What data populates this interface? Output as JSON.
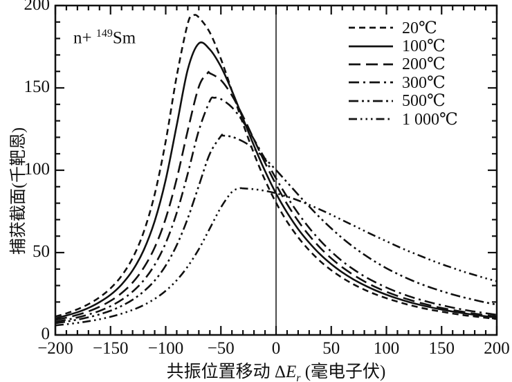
{
  "colors": {
    "ink": "#111111",
    "background": "#ffffff"
  },
  "chart_data": {
    "type": "line",
    "title": "",
    "annotation": {
      "prefix": "n+ ",
      "superscript": "149",
      "nuclide": "Sm"
    },
    "xlabel_prefix": "共振位置移动 Δ",
    "xlabel_symbol": "E",
    "xlabel_symbol_sub": "r",
    "xlabel_suffix": " (毫电子伏)",
    "ylabel": "捕获截面(千靶恩)",
    "xlim": [
      -200,
      200
    ],
    "ylim": [
      0,
      200
    ],
    "x_major_ticks": [
      -200,
      -150,
      -100,
      -50,
      0,
      50,
      100,
      150,
      200
    ],
    "x_major_tick_labels": [
      "−200",
      "−150",
      "−100",
      "−50",
      "0",
      "50",
      "100",
      "150",
      "200"
    ],
    "x_minor_step": 10,
    "y_major_ticks": [
      0,
      50,
      100,
      150,
      200
    ],
    "y_major_tick_labels": [
      "0",
      "50",
      "100",
      "150",
      "200"
    ],
    "y_minor_step": 10,
    "grid": false,
    "zero_reference_line_x": 0,
    "legend_position": "top-right",
    "series": [
      {
        "id": "20c",
        "label": "20℃",
        "line_style": "dashed",
        "dash": "9 6",
        "points": [
          [
            -200,
            11.2
          ],
          [
            -190,
            13.1
          ],
          [
            -180,
            15.6
          ],
          [
            -170,
            18.7
          ],
          [
            -160,
            22.8
          ],
          [
            -150,
            28.3
          ],
          [
            -140,
            35.9
          ],
          [
            -130,
            46.7
          ],
          [
            -120,
            62.4
          ],
          [
            -110,
            85.4
          ],
          [
            -100,
            117.6
          ],
          [
            -90,
            157.2
          ],
          [
            -80,
            189.1
          ],
          [
            -75,
            194
          ],
          [
            -70,
            192.8
          ],
          [
            -60,
            183.6
          ],
          [
            -50,
            167.6
          ],
          [
            -40,
            148.2
          ],
          [
            -30,
            128.4
          ],
          [
            -20,
            110.1
          ],
          [
            -10,
            94
          ],
          [
            0,
            80.3
          ],
          [
            10,
            68.8
          ],
          [
            20,
            59.3
          ],
          [
            30,
            51.4
          ],
          [
            40,
            44.8
          ],
          [
            50,
            39.3
          ],
          [
            60,
            34.7
          ],
          [
            70,
            30.8
          ],
          [
            80,
            27.5
          ],
          [
            90,
            24.7
          ],
          [
            100,
            22.3
          ],
          [
            110,
            20.2
          ],
          [
            120,
            18.3
          ],
          [
            130,
            16.7
          ],
          [
            140,
            15.3
          ],
          [
            150,
            14.1
          ],
          [
            160,
            13
          ],
          [
            170,
            12
          ],
          [
            180,
            11.2
          ],
          [
            190,
            10.4
          ],
          [
            200,
            9.7
          ]
        ]
      },
      {
        "id": "100c",
        "label": "100℃",
        "line_style": "solid",
        "dash": "",
        "points": [
          [
            -200,
            10.1
          ],
          [
            -190,
            11.8
          ],
          [
            -180,
            13.8
          ],
          [
            -170,
            16.4
          ],
          [
            -160,
            19.9
          ],
          [
            -150,
            24.4
          ],
          [
            -140,
            30.6
          ],
          [
            -130,
            39.2
          ],
          [
            -120,
            51.4
          ],
          [
            -110,
            69.1
          ],
          [
            -100,
            94.2
          ],
          [
            -90,
            127.3
          ],
          [
            -80,
            161.2
          ],
          [
            -70,
            177
          ],
          [
            -60,
            173.3
          ],
          [
            -50,
            162.9
          ],
          [
            -40,
            148.2
          ],
          [
            -30,
            131.5
          ],
          [
            -20,
            114.9
          ],
          [
            -10,
            99.5
          ],
          [
            0,
            85.9
          ],
          [
            10,
            74.3
          ],
          [
            20,
            64.3
          ],
          [
            30,
            56
          ],
          [
            40,
            48.9
          ],
          [
            50,
            43
          ],
          [
            60,
            38
          ],
          [
            70,
            33.8
          ],
          [
            80,
            30.2
          ],
          [
            90,
            27.1
          ],
          [
            100,
            24.4
          ],
          [
            110,
            22.1
          ],
          [
            120,
            20.1
          ],
          [
            130,
            18.3
          ],
          [
            140,
            16.8
          ],
          [
            150,
            15.4
          ],
          [
            160,
            14.2
          ],
          [
            170,
            13.2
          ],
          [
            180,
            12.2
          ],
          [
            190,
            11.3
          ],
          [
            200,
            10.6
          ]
        ]
      },
      {
        "id": "200c",
        "label": "200℃",
        "line_style": "long-dash",
        "dash": "17 8",
        "points": [
          [
            -200,
            9.1
          ],
          [
            -190,
            10.5
          ],
          [
            -180,
            12.2
          ],
          [
            -170,
            14.3
          ],
          [
            -160,
            17.1
          ],
          [
            -150,
            20.7
          ],
          [
            -140,
            25.4
          ],
          [
            -130,
            31.8
          ],
          [
            -120,
            40.7
          ],
          [
            -110,
            53.1
          ],
          [
            -100,
            70.7
          ],
          [
            -90,
            94.8
          ],
          [
            -80,
            124.2
          ],
          [
            -70,
            150.7
          ],
          [
            -62,
            159
          ],
          [
            -60,
            158.9
          ],
          [
            -50,
            154.7
          ],
          [
            -40,
            145.4
          ],
          [
            -30,
            132.8
          ],
          [
            -20,
            118.6
          ],
          [
            -10,
            104.5
          ],
          [
            0,
            91.3
          ],
          [
            10,
            79.5
          ],
          [
            20,
            69.2
          ],
          [
            30,
            60.4
          ],
          [
            40,
            52.9
          ],
          [
            50,
            46.5
          ],
          [
            60,
            41.1
          ],
          [
            70,
            36.5
          ],
          [
            80,
            32.5
          ],
          [
            90,
            29.1
          ],
          [
            100,
            26.2
          ],
          [
            110,
            23.7
          ],
          [
            120,
            21.5
          ],
          [
            130,
            19.6
          ],
          [
            140,
            17.9
          ],
          [
            150,
            16.4
          ],
          [
            160,
            15.1
          ],
          [
            170,
            14
          ],
          [
            180,
            12.9
          ],
          [
            190,
            12
          ],
          [
            200,
            11.2
          ]
        ]
      },
      {
        "id": "300c",
        "label": "300℃",
        "line_style": "dash-dot",
        "dash": "15 6 3 6",
        "points": [
          [
            -200,
            8
          ],
          [
            -190,
            9.2
          ],
          [
            -180,
            10.6
          ],
          [
            -170,
            12.4
          ],
          [
            -160,
            14.6
          ],
          [
            -150,
            17.5
          ],
          [
            -140,
            21.3
          ],
          [
            -130,
            26.3
          ],
          [
            -120,
            33.1
          ],
          [
            -110,
            42.6
          ],
          [
            -100,
            55.8
          ],
          [
            -90,
            74.1
          ],
          [
            -80,
            98
          ],
          [
            -70,
            124.1
          ],
          [
            -60,
            142.1
          ],
          [
            -56,
            144
          ],
          [
            -50,
            143.2
          ],
          [
            -40,
            138.2
          ],
          [
            -30,
            129.6
          ],
          [
            -20,
            118.7
          ],
          [
            -10,
            106.8
          ],
          [
            0,
            95
          ],
          [
            10,
            83.9
          ],
          [
            20,
            73.9
          ],
          [
            30,
            65
          ],
          [
            40,
            57.3
          ],
          [
            50,
            50.6
          ],
          [
            60,
            44.8
          ],
          [
            70,
            39.9
          ],
          [
            80,
            35.6
          ],
          [
            90,
            32
          ],
          [
            100,
            28.8
          ],
          [
            110,
            26
          ],
          [
            120,
            23.6
          ],
          [
            130,
            21.5
          ],
          [
            140,
            19.7
          ],
          [
            150,
            18.1
          ],
          [
            160,
            16.6
          ],
          [
            170,
            15.3
          ],
          [
            180,
            14.2
          ],
          [
            190,
            13.2
          ],
          [
            200,
            12.2
          ]
        ]
      },
      {
        "id": "500c",
        "label": "500℃",
        "line_style": "dash-dot-dot",
        "dash": "14 5 3 5 3 5",
        "points": [
          [
            -200,
            7.1
          ],
          [
            -190,
            8.1
          ],
          [
            -180,
            9.3
          ],
          [
            -170,
            10.7
          ],
          [
            -160,
            12.5
          ],
          [
            -150,
            14.7
          ],
          [
            -140,
            17.6
          ],
          [
            -130,
            21.4
          ],
          [
            -120,
            26.4
          ],
          [
            -110,
            33
          ],
          [
            -100,
            42.1
          ],
          [
            -90,
            54.5
          ],
          [
            -80,
            70.8
          ],
          [
            -70,
            90.6
          ],
          [
            -60,
            110
          ],
          [
            -50,
            120.7
          ],
          [
            -48,
            121
          ],
          [
            -40,
            120.3
          ],
          [
            -30,
            117.5
          ],
          [
            -20,
            113
          ],
          [
            -10,
            107
          ],
          [
            0,
            100.1
          ],
          [
            10,
            92.7
          ],
          [
            20,
            85.2
          ],
          [
            30,
            78
          ],
          [
            40,
            71.1
          ],
          [
            50,
            64.7
          ],
          [
            60,
            58.8
          ],
          [
            70,
            53.5
          ],
          [
            80,
            48.7
          ],
          [
            90,
            44.4
          ],
          [
            100,
            40.5
          ],
          [
            110,
            37.1
          ],
          [
            120,
            34
          ],
          [
            130,
            31.2
          ],
          [
            140,
            28.8
          ],
          [
            150,
            26.6
          ],
          [
            160,
            24.6
          ],
          [
            170,
            22.8
          ],
          [
            180,
            21.2
          ],
          [
            190,
            19.7
          ],
          [
            200,
            18.4
          ]
        ]
      },
      {
        "id": "1000c",
        "label": "1 000℃",
        "line_style": "dash-dot-dot-dot",
        "dash": "12 5 2.5 5 2.5 5 2.5 5",
        "points": [
          [
            -200,
            5.8
          ],
          [
            -190,
            6.5
          ],
          [
            -180,
            7.3
          ],
          [
            -170,
            8.3
          ],
          [
            -160,
            9.5
          ],
          [
            -150,
            11
          ],
          [
            -140,
            12.9
          ],
          [
            -130,
            15.2
          ],
          [
            -120,
            18.1
          ],
          [
            -110,
            21.9
          ],
          [
            -100,
            26.8
          ],
          [
            -90,
            33.2
          ],
          [
            -80,
            41.6
          ],
          [
            -70,
            52.1
          ],
          [
            -60,
            64.7
          ],
          [
            -50,
            77.4
          ],
          [
            -40,
            86.8
          ],
          [
            -33,
            89
          ],
          [
            -30,
            89
          ],
          [
            -20,
            88.5
          ],
          [
            -10,
            87.5
          ],
          [
            0,
            86
          ],
          [
            10,
            84
          ],
          [
            20,
            81.7
          ],
          [
            30,
            79
          ],
          [
            40,
            76.1
          ],
          [
            50,
            73
          ],
          [
            60,
            69.7
          ],
          [
            70,
            66.5
          ],
          [
            80,
            63.2
          ],
          [
            90,
            60
          ],
          [
            100,
            56.9
          ],
          [
            110,
            53.8
          ],
          [
            120,
            50.9
          ],
          [
            130,
            48.2
          ],
          [
            140,
            45.5
          ],
          [
            150,
            43
          ],
          [
            160,
            40.7
          ],
          [
            170,
            38.4
          ],
          [
            180,
            36.4
          ],
          [
            190,
            34.4
          ],
          [
            200,
            32.6
          ]
        ]
      }
    ]
  }
}
